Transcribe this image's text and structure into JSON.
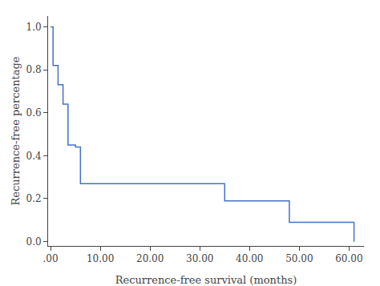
{
  "chart_data": {
    "type": "line",
    "x_label": "Recurrence-free survival (months)",
    "y_label": "Recurrence-free percentage",
    "x": [
      0,
      0.5,
      0.5,
      1.5,
      1.5,
      2.5,
      2.5,
      3.5,
      3.5,
      5.0,
      5.0,
      6.0,
      6.0,
      7.5,
      7.5,
      35.0,
      35.0,
      36.5,
      36.5,
      48.0,
      48.0,
      49.5,
      49.5,
      61.0,
      61.0
    ],
    "values": [
      1.0,
      1.0,
      0.82,
      0.82,
      0.73,
      0.73,
      0.64,
      0.64,
      0.45,
      0.45,
      0.44,
      0.44,
      0.27,
      0.27,
      0.27,
      0.27,
      0.19,
      0.19,
      0.19,
      0.19,
      0.09,
      0.09,
      0.09,
      0.09,
      0.0
    ],
    "color": "#4472c4",
    "xlim": [
      -0.5,
      63
    ],
    "ylim": [
      -0.02,
      1.05
    ],
    "xticks": [
      {
        "value": 0,
        "label": ".00"
      },
      {
        "value": 10,
        "label": "10.00"
      },
      {
        "value": 20,
        "label": "20.00"
      },
      {
        "value": 30,
        "label": "30.00"
      },
      {
        "value": 40,
        "label": "40.00"
      },
      {
        "value": 50,
        "label": "50.00"
      },
      {
        "value": 60,
        "label": "60.00"
      }
    ],
    "yticks": [
      {
        "value": 0.0,
        "label": "0.0"
      },
      0.2,
      0.4,
      0.6,
      0.8,
      {
        "value": 1.0,
        "label": "1.0"
      }
    ],
    "grid": false
  }
}
